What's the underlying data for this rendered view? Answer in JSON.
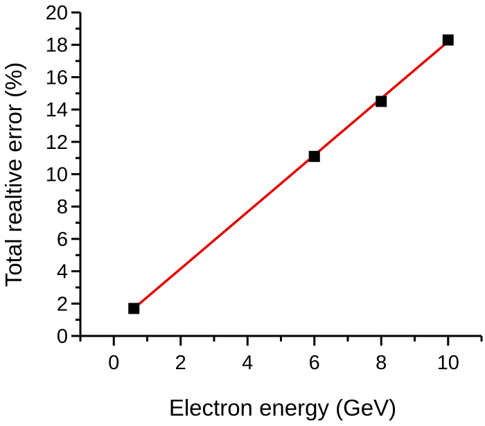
{
  "chart_data": {
    "type": "scatter",
    "title": "",
    "xlabel": "Electron energy (GeV)",
    "ylabel": "Total realtive error (%)",
    "xlim": [
      -1,
      11
    ],
    "ylim": [
      0,
      20
    ],
    "xticks": [
      0,
      2,
      4,
      6,
      8,
      10
    ],
    "yticks": [
      0,
      2,
      4,
      6,
      8,
      10,
      12,
      14,
      16,
      18,
      20
    ],
    "grid": false,
    "legend": "none",
    "series": [
      {
        "marker": "square",
        "color": "#000000",
        "x": [
          0.6,
          6,
          8,
          10
        ],
        "y": [
          1.7,
          11.1,
          14.5,
          18.3
        ]
      }
    ],
    "fit_line": {
      "color": "#e00000",
      "x": [
        0.6,
        10
      ],
      "y": [
        1.7,
        18.2
      ]
    }
  }
}
